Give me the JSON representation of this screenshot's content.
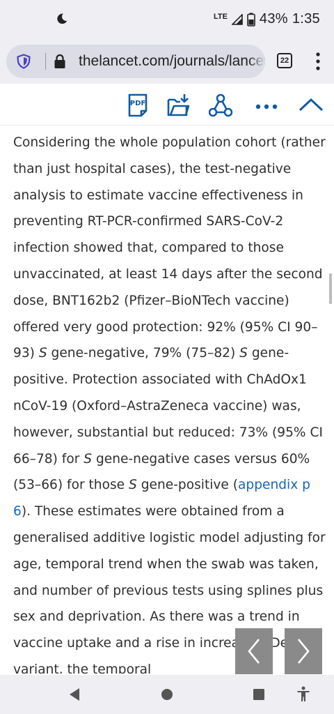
{
  "status_bar": {
    "network": "LTE",
    "battery": "43%",
    "time": "1:35",
    "icons": [
      "do-not-disturb-moon-icon",
      "signal-icon",
      "battery-icon"
    ]
  },
  "browser": {
    "url": "thelancet.com/journals/lancet",
    "tab_count": "22",
    "icons": [
      "shield-icon",
      "lock-icon",
      "menu-dots-icon"
    ]
  },
  "toolbar": {
    "icons": [
      "pdf-icon",
      "download-icon",
      "share-icon",
      "more-icon",
      "collapse-chevron-icon"
    ],
    "pdf_label": "PDF"
  },
  "article": {
    "p1": "Considering the whole population cohort (rather than just hospital cases), the test-negative analysis to estimate vaccine effectiveness in preventing RT-PCR-confirmed SARS-CoV-2 infection showed that, compared to those unvaccinated, at least 14 days after the second dose, BNT162b2 (Pfizer–BioNTech vaccine) offered very good protection: 92% (95% CI 90–93) ",
    "s1": "S",
    "p2": " gene-negative, 79% (75–82) ",
    "s2": "S",
    "p3": " gene-positive. Protection associated with ChAdOx1 nCoV-19 (Oxford–AstraZeneca vaccine) was, however, substantial but reduced: 73% (95% CI 66–78) for ",
    "s3": "S",
    "p4": " gene-negative cases versus 60% (53–66) for those ",
    "s4": "S",
    "p5": " gene-positive (",
    "link": "appendix p 6",
    "p6": "). These estimates were obtained from a generalised additive logistic model adjusting for age, temporal trend when the swab was taken, and number of previous tests using splines plus sex and deprivation. As there was a trend in vaccine uptake and a rise in increasing Delta variant, the temporal"
  },
  "article_nav": {
    "icons": [
      "chevron-left-icon",
      "chevron-right-icon"
    ]
  },
  "system_nav": {
    "icons": [
      "back-triangle-icon",
      "home-circle-icon",
      "recents-square-icon",
      "accessibility-icon"
    ]
  }
}
